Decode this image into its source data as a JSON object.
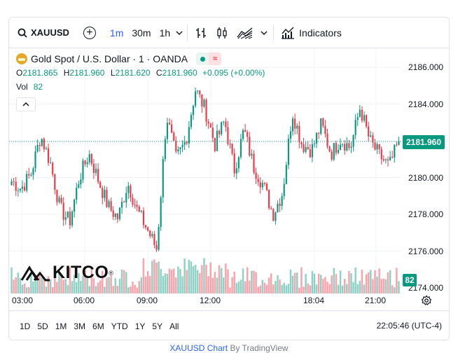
{
  "toolbar": {
    "symbol": "XAUUSD",
    "intervals": [
      "1m",
      "30m",
      "1h"
    ],
    "indicators_label": "Indicators"
  },
  "legend": {
    "title": "Gold Spot / U.S. Dollar · 1 · OANDA",
    "badge": "≈",
    "ohlc": {
      "o_label": "O",
      "o": "2181.865",
      "h_label": "H",
      "h": "2181.960",
      "l_label": "L",
      "l": "2181.620",
      "c_label": "C",
      "c": "2181.960",
      "change": "+0.095 (+0.00%)"
    },
    "vol_label": "Vol",
    "vol_value": "82"
  },
  "yaxis": {
    "ticks": [
      "2186.000",
      "2184.000",
      "2182.000",
      "2180.000",
      "2178.000",
      "2176.000",
      "2174.000"
    ],
    "current_price": "2181.960",
    "current_volume": "82"
  },
  "xaxis": {
    "ticks": [
      "03:00",
      "06:00",
      "09:00",
      "12:00",
      "18:04",
      "21:00"
    ]
  },
  "ranges": [
    "1D",
    "5D",
    "1M",
    "3M",
    "6M",
    "YTD",
    "1Y",
    "5Y",
    "All"
  ],
  "clock": "22:05:46 (UTC-4)",
  "logo_text": "KITCO",
  "footer": {
    "link": "XAUUSD Chart",
    "by": "By TradingView"
  },
  "colors": {
    "up": "#089981",
    "down": "#f23645",
    "accent": "#2962ff"
  },
  "chart_data": {
    "type": "candlestick",
    "symbol": "XAUUSD",
    "interval": "1m",
    "x": [
      "01:30",
      "02:30",
      "03:00",
      "03:30",
      "04:00",
      "04:30",
      "05:00",
      "05:30",
      "06:00",
      "06:30",
      "07:00",
      "07:30",
      "08:00",
      "08:30",
      "09:00",
      "09:15",
      "09:30",
      "10:00",
      "10:30",
      "11:00",
      "11:30",
      "12:00",
      "12:30",
      "13:00",
      "13:30",
      "14:00",
      "14:30",
      "15:00",
      "15:30",
      "16:00",
      "16:30",
      "17:00",
      "18:04",
      "18:30",
      "19:00",
      "19:30",
      "20:00",
      "20:30",
      "21:00",
      "21:30",
      "22:00"
    ],
    "close": [
      2179.8,
      2179.4,
      2180.2,
      2182.3,
      2180.8,
      2178.3,
      2177.6,
      2180.0,
      2181.3,
      2179.8,
      2178.4,
      2177.8,
      2179.7,
      2178.2,
      2177.2,
      2176.1,
      2183.4,
      2181.0,
      2182.0,
      2184.8,
      2183.7,
      2181.8,
      2183.1,
      2180.4,
      2182.6,
      2180.6,
      2179.6,
      2178.0,
      2179.2,
      2183.6,
      2181.8,
      2181.5,
      2182.9,
      2181.3,
      2182.1,
      2181.6,
      2183.8,
      2182.0,
      2181.2,
      2180.6,
      2181.96
    ],
    "volume_unit": "lots",
    "ylim": [
      2174.0,
      2186.5
    ]
  }
}
